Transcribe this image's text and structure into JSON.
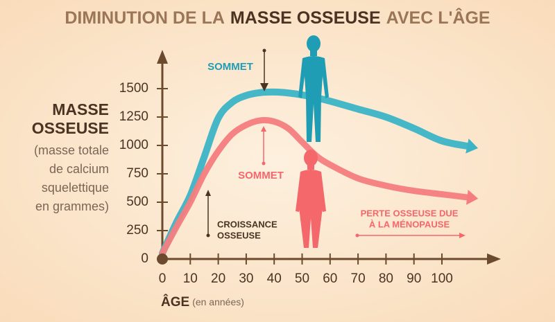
{
  "chart_data": {
    "type": "line",
    "title": [
      "DIMINUTION DE LA",
      "MASSE OSSEUSE",
      "AVEC L'ÂGE"
    ],
    "y_label": [
      "MASSE",
      "OSSEUSE"
    ],
    "y_sublabel": [
      "(masse totale",
      "de calcium",
      "squelettique",
      "en grammes)"
    ],
    "x_label": "ÂGE",
    "x_sublabel": "(en années)",
    "x": [
      0,
      5,
      10,
      15,
      20,
      25,
      30,
      35,
      40,
      45,
      50,
      55,
      60,
      70,
      80,
      90,
      100,
      110
    ],
    "series": [
      {
        "color": "#3cb4c6",
        "values": [
          50,
          320,
          560,
          900,
          1240,
          1380,
          1440,
          1465,
          1470,
          1462,
          1445,
          1420,
          1390,
          1320,
          1250,
          1150,
          1040,
          990
        ]
      },
      {
        "color": "#f47d80",
        "values": [
          50,
          280,
          500,
          750,
          950,
          1100,
          1180,
          1220,
          1210,
          1150,
          1030,
          910,
          830,
          710,
          645,
          600,
          570,
          540
        ]
      }
    ],
    "xlim": [
      0,
      120
    ],
    "ylim": [
      0,
      1820
    ],
    "xticks": [
      0,
      10,
      20,
      30,
      40,
      50,
      60,
      70,
      80,
      90,
      100
    ],
    "yticks": [
      0,
      250,
      500,
      750,
      1000,
      1250,
      1500
    ],
    "annotations": {
      "peak_male": "SOMMET",
      "peak_female": "SOMMET",
      "growth": [
        "CROISSANCE",
        "OSSEUSE"
      ],
      "menopause": [
        "PERTE OSSEUSE DUE",
        "À LA MÉNOPAUSE"
      ]
    }
  }
}
